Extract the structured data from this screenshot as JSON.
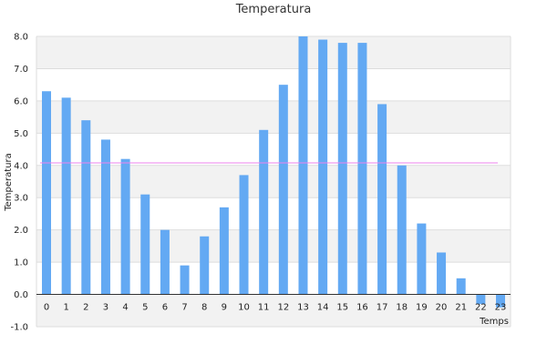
{
  "chart_data": {
    "type": "bar",
    "title": "Temperatura",
    "xlabel": "Temps",
    "ylabel": "Temperatura",
    "ylim": [
      -1.0,
      8.0
    ],
    "yticks": [
      "-1.0",
      "0.0",
      "1.0",
      "2.0",
      "3.0",
      "4.0",
      "5.0",
      "6.0",
      "7.0",
      "8.0"
    ],
    "categories": [
      "0",
      "1",
      "2",
      "3",
      "4",
      "5",
      "6",
      "7",
      "8",
      "9",
      "10",
      "11",
      "12",
      "13",
      "14",
      "15",
      "16",
      "17",
      "18",
      "19",
      "20",
      "21",
      "22",
      "23"
    ],
    "values": [
      6.3,
      6.1,
      5.4,
      4.8,
      4.2,
      3.1,
      2.0,
      0.9,
      1.8,
      2.7,
      3.7,
      5.1,
      6.5,
      8.0,
      7.9,
      7.8,
      7.8,
      5.9,
      4.0,
      2.2,
      1.3,
      0.5,
      -0.3,
      -0.4
    ],
    "average_line": 4.08,
    "grid": true,
    "legend": "none",
    "colors": {
      "bar": "#63a9f3",
      "average_line": "#ee82ee",
      "band": "#f2f2f2",
      "grid": "#dddddd",
      "axis": "#333333"
    }
  }
}
